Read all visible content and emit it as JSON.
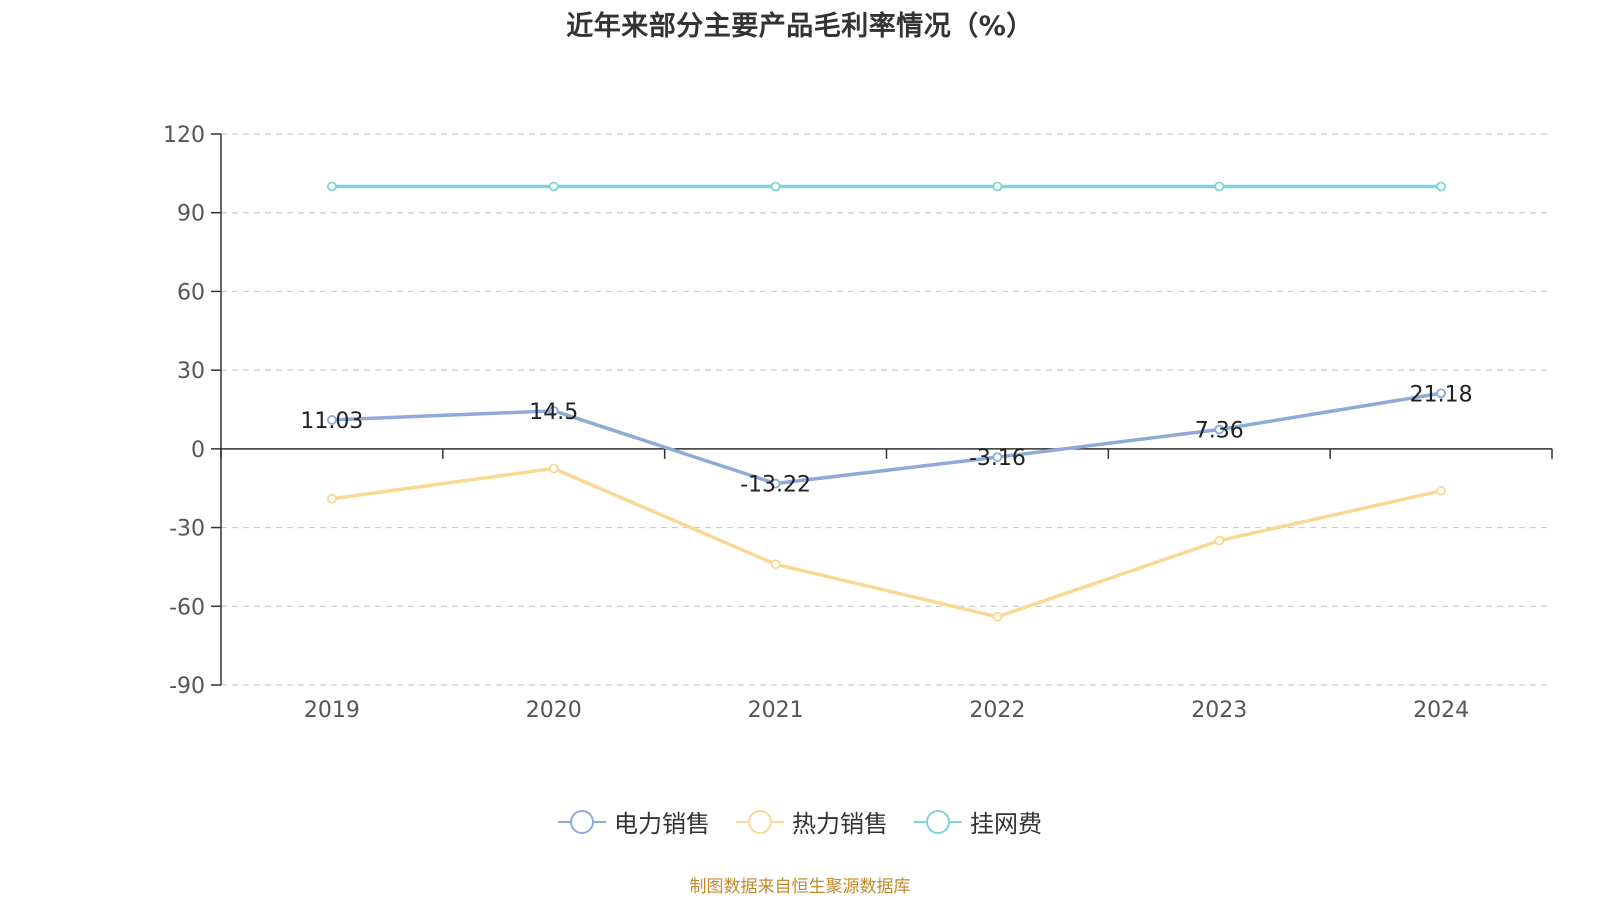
{
  "chart_data": {
    "type": "line",
    "title": "近年来部分主要产品毛利率情况（%）",
    "categories": [
      "2019",
      "2020",
      "2021",
      "2022",
      "2023",
      "2024"
    ],
    "ylim": [
      -90,
      120
    ],
    "yticks": [
      "120",
      "90",
      "60",
      "30",
      "0",
      "-30",
      "-60",
      "-90"
    ],
    "grid": true,
    "legend_position": "bottom",
    "series": [
      {
        "name": "电力销售",
        "color": "#8eaad8",
        "values": [
          11.03,
          14.5,
          -13.22,
          -3.16,
          7.36,
          21.18
        ],
        "labels": [
          "11.03",
          "14.5",
          "-13.22",
          "-3.16",
          "7.36",
          "21.18"
        ]
      },
      {
        "name": "热力销售",
        "color": "#f9d894",
        "values": [
          -19,
          -7.5,
          -44,
          -64,
          -35,
          -16
        ]
      },
      {
        "name": "挂网费",
        "color": "#80d4d8",
        "values": [
          100,
          100,
          100,
          100,
          100,
          100
        ]
      }
    ]
  },
  "source": "制图数据来自恒生聚源数据库"
}
